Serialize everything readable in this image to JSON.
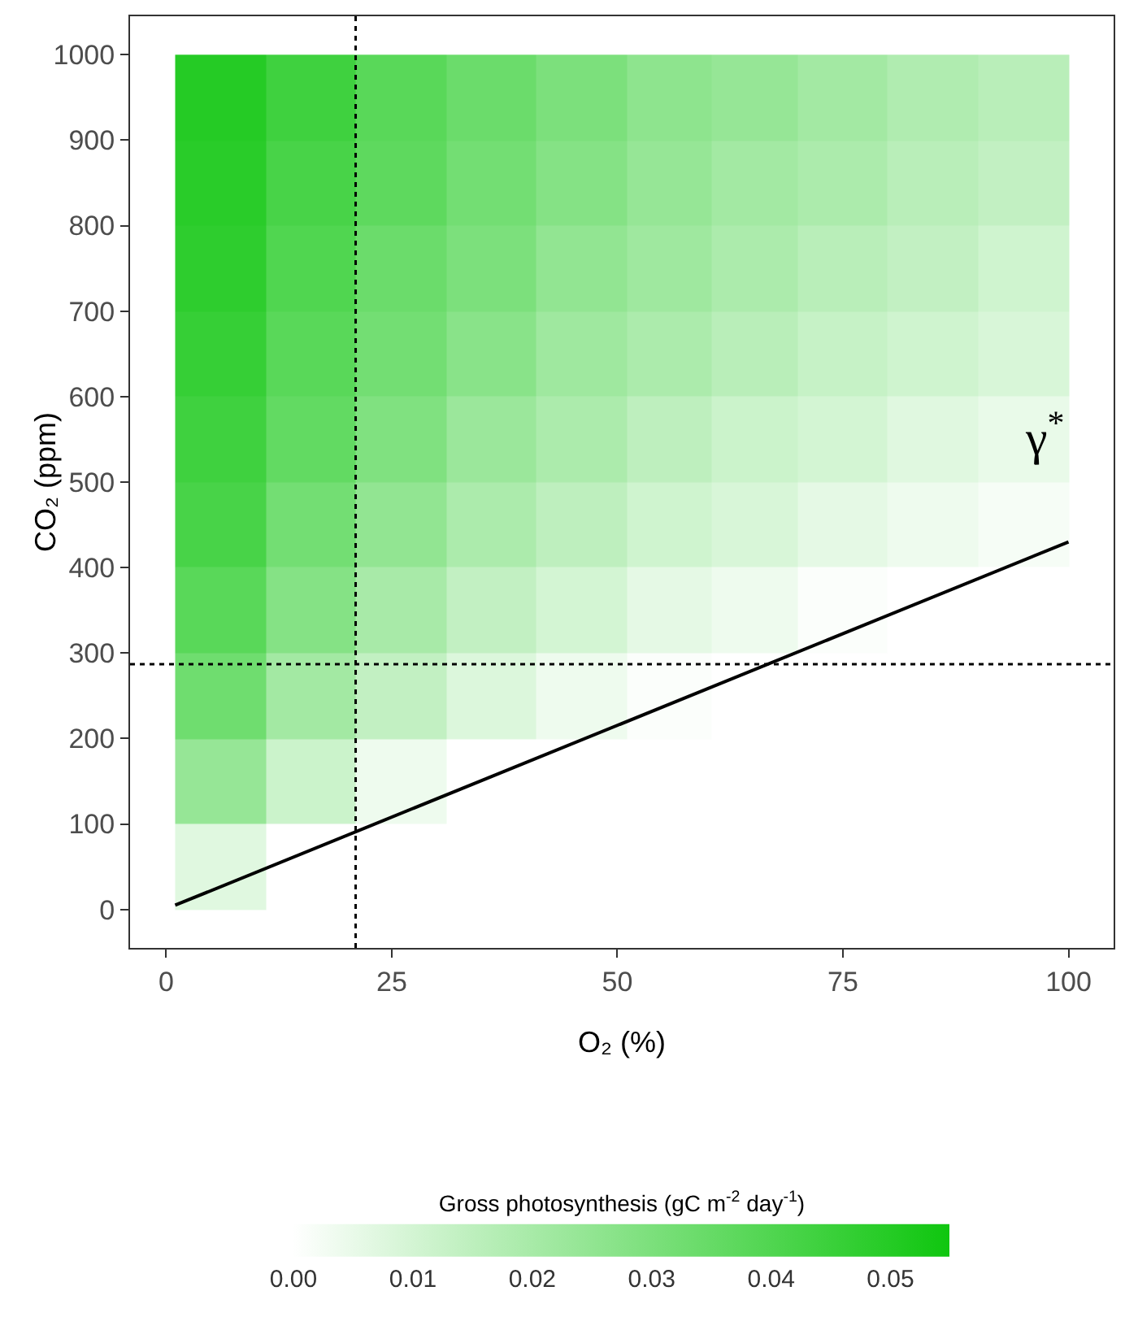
{
  "chart_data": {
    "type": "heatmap",
    "xlabel": "O₂ (%)",
    "ylabel": "CO₂ (ppm)",
    "clabel": "Gross photosynthesis (gC m$^{-2}$ day$^{-1}$)",
    "x": [
      6,
      16,
      26,
      36,
      46,
      56,
      65,
      75,
      85,
      95
    ],
    "y": [
      950,
      850,
      750,
      650,
      550,
      450,
      350,
      250,
      150,
      50
    ],
    "cells": [
      [
        0.05,
        0.044,
        0.038,
        0.034,
        0.03,
        0.026,
        0.024,
        0.021,
        0.018,
        0.016
      ],
      [
        0.049,
        0.042,
        0.037,
        0.032,
        0.028,
        0.024,
        0.021,
        0.019,
        0.016,
        0.014
      ],
      [
        0.048,
        0.04,
        0.034,
        0.03,
        0.025,
        0.022,
        0.019,
        0.016,
        0.014,
        0.011
      ],
      [
        0.046,
        0.038,
        0.032,
        0.027,
        0.022,
        0.019,
        0.016,
        0.013,
        0.011,
        0.009
      ],
      [
        0.044,
        0.036,
        0.029,
        0.023,
        0.019,
        0.015,
        0.012,
        0.01,
        0.007,
        0.005
      ],
      [
        0.042,
        0.032,
        0.025,
        0.019,
        0.015,
        0.011,
        0.009,
        0.006,
        0.004,
        0.002
      ],
      [
        0.038,
        0.028,
        0.02,
        0.014,
        0.01,
        0.006,
        0.004,
        0.001,
        0,
        0
      ],
      [
        0.033,
        0.021,
        0.014,
        0.008,
        0.004,
        0.001,
        0,
        0,
        0,
        0
      ],
      [
        0.024,
        0.012,
        0.004,
        0,
        0,
        0,
        0,
        0,
        0,
        0
      ],
      [
        0.007,
        0,
        0,
        0,
        0,
        0,
        0,
        0,
        0,
        0
      ]
    ],
    "colors": [
      "#ffffff",
      "#0fc60f"
    ],
    "clim": [
      0,
      0.055
    ],
    "cticks": [
      {
        "value": 0,
        "label": "0.00"
      },
      {
        "value": 0.01,
        "label": "0.01"
      },
      {
        "value": 0.02,
        "label": "0.02"
      },
      {
        "value": 0.03,
        "label": "0.03"
      },
      {
        "value": 0.04,
        "label": "0.04"
      },
      {
        "value": 0.05,
        "label": "0.05"
      }
    ],
    "xlim": [
      -4,
      105
    ],
    "xticks": [
      0,
      25,
      50,
      75,
      100
    ],
    "ylim": [
      -45,
      1045
    ],
    "yticks": [
      0,
      100,
      200,
      300,
      400,
      500,
      600,
      700,
      800,
      900,
      1000
    ],
    "series": [
      {
        "type": "line",
        "x": [
          1,
          100
        ],
        "values": [
          5,
          430
        ],
        "color": "#000000"
      }
    ],
    "ref_lines": [
      {
        "axis": "x",
        "value": 21,
        "line_style": "dotted",
        "color": "#000000"
      },
      {
        "axis": "y",
        "value": 287,
        "line_style": "dotted",
        "color": "#000000"
      }
    ],
    "annotations": [
      "γ$^{*}$"
    ],
    "grid": false,
    "legend": false
  }
}
